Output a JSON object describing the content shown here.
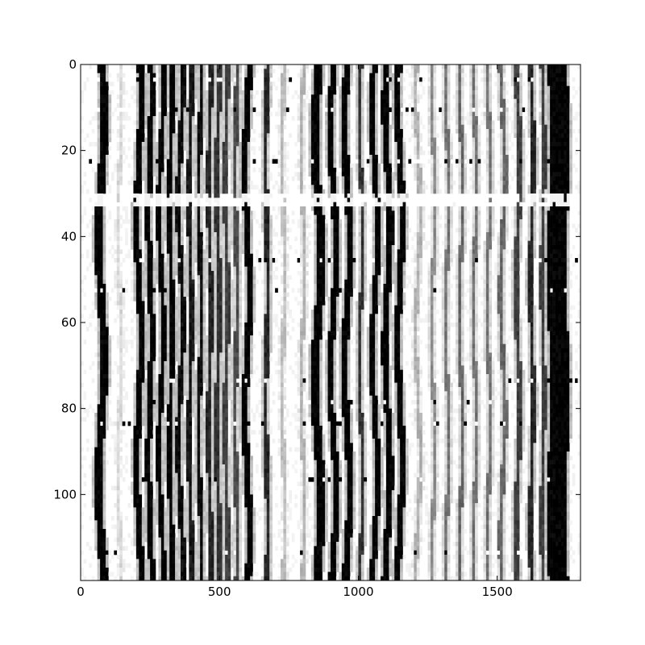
{
  "chart_data": {
    "type": "heatmap",
    "colormap": "gray_r",
    "title": "",
    "xlabel": "",
    "ylabel": "",
    "xlim": [
      0,
      1800
    ],
    "ylim": [
      120,
      0
    ],
    "rows": 120,
    "x_ticks": [
      0,
      500,
      1000,
      1500
    ],
    "y_ticks": [
      0,
      20,
      40,
      60,
      80,
      100
    ],
    "bands": [
      {
        "x": 75,
        "width": 28,
        "drift": 10,
        "intensity": 1.0
      },
      {
        "x": 140,
        "width": 14,
        "drift": 6,
        "intensity": 0.15
      },
      {
        "x": 210,
        "width": 22,
        "drift": 8,
        "intensity": 1.0
      },
      {
        "x": 250,
        "width": 20,
        "drift": 6,
        "intensity": 1.0
      },
      {
        "x": 290,
        "width": 18,
        "drift": 8,
        "intensity": 1.0
      },
      {
        "x": 325,
        "width": 16,
        "drift": 6,
        "intensity": 1.0
      },
      {
        "x": 360,
        "width": 18,
        "drift": 8,
        "intensity": 0.95
      },
      {
        "x": 395,
        "width": 14,
        "drift": 6,
        "intensity": 0.9
      },
      {
        "x": 430,
        "width": 16,
        "drift": 6,
        "intensity": 0.95
      },
      {
        "x": 465,
        "width": 14,
        "drift": 6,
        "intensity": 0.85
      },
      {
        "x": 495,
        "width": 16,
        "drift": 6,
        "intensity": 0.8
      },
      {
        "x": 525,
        "width": 14,
        "drift": 6,
        "intensity": 0.75
      },
      {
        "x": 560,
        "width": 18,
        "drift": 6,
        "intensity": 0.7
      },
      {
        "x": 600,
        "width": 22,
        "drift": 8,
        "intensity": 1.0
      },
      {
        "x": 670,
        "width": 16,
        "drift": 4,
        "intensity": 0.85
      },
      {
        "x": 730,
        "width": 14,
        "drift": 4,
        "intensity": 0.25
      },
      {
        "x": 800,
        "width": 12,
        "drift": 4,
        "intensity": 0.3
      },
      {
        "x": 855,
        "width": 30,
        "drift": 12,
        "intensity": 1.0
      },
      {
        "x": 910,
        "width": 22,
        "drift": 10,
        "intensity": 1.0
      },
      {
        "x": 960,
        "width": 24,
        "drift": 10,
        "intensity": 1.0
      },
      {
        "x": 1010,
        "width": 14,
        "drift": 8,
        "intensity": 0.8
      },
      {
        "x": 1060,
        "width": 20,
        "drift": 10,
        "intensity": 1.0
      },
      {
        "x": 1105,
        "width": 22,
        "drift": 10,
        "intensity": 1.0
      },
      {
        "x": 1150,
        "width": 22,
        "drift": 8,
        "intensity": 1.0
      },
      {
        "x": 1215,
        "width": 14,
        "drift": 8,
        "intensity": 0.3
      },
      {
        "x": 1270,
        "width": 14,
        "drift": 8,
        "intensity": 0.45
      },
      {
        "x": 1320,
        "width": 14,
        "drift": 8,
        "intensity": 0.55
      },
      {
        "x": 1370,
        "width": 14,
        "drift": 8,
        "intensity": 0.6
      },
      {
        "x": 1420,
        "width": 14,
        "drift": 8,
        "intensity": 0.55
      },
      {
        "x": 1470,
        "width": 14,
        "drift": 8,
        "intensity": 0.55
      },
      {
        "x": 1520,
        "width": 16,
        "drift": 8,
        "intensity": 0.6
      },
      {
        "x": 1575,
        "width": 16,
        "drift": 8,
        "intensity": 0.75
      },
      {
        "x": 1625,
        "width": 14,
        "drift": 6,
        "intensity": 0.85
      },
      {
        "x": 1665,
        "width": 12,
        "drift": 6,
        "intensity": 0.75
      },
      {
        "x": 1720,
        "width": 70,
        "drift": 6,
        "intensity": 1.0
      }
    ],
    "bright_rows": [
      30,
      31,
      32
    ],
    "speckle_rows": [
      3,
      10,
      22,
      45,
      52,
      73,
      78,
      83,
      96,
      113
    ]
  }
}
